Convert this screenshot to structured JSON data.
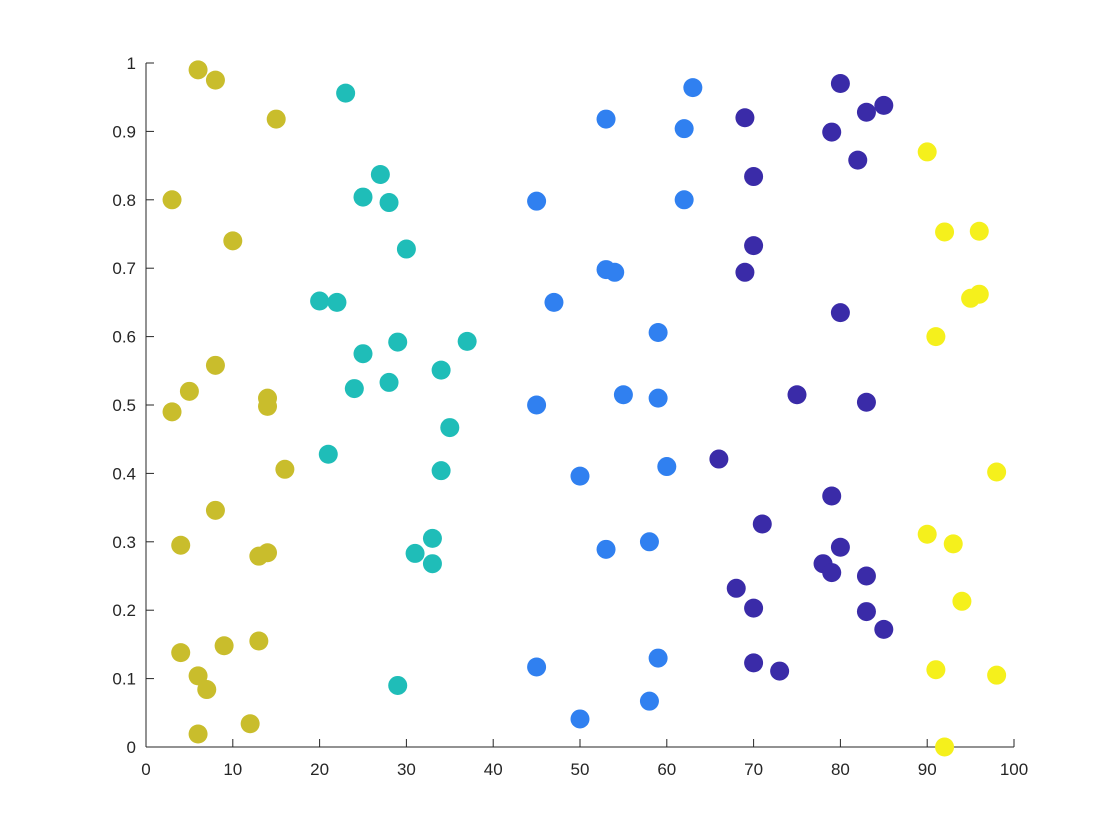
{
  "chart_data": {
    "type": "scatter",
    "title": "",
    "xlabel": "",
    "ylabel": "",
    "xlim": [
      0,
      100
    ],
    "ylim": [
      0,
      1
    ],
    "xticks": [
      "0",
      "10",
      "20",
      "30",
      "40",
      "50",
      "60",
      "70",
      "80",
      "90",
      "100"
    ],
    "yticks": [
      "0",
      "0.1",
      "0.2",
      "0.3",
      "0.4",
      "0.5",
      "0.6",
      "0.7",
      "0.8",
      "0.9",
      "1"
    ],
    "grid": false,
    "legend": "none",
    "series": [
      {
        "color": "#c9bd2c",
        "points": [
          [
            6,
            0.99
          ],
          [
            8,
            0.975
          ],
          [
            15,
            0.918
          ],
          [
            3,
            0.8
          ],
          [
            10,
            0.74
          ],
          [
            8,
            0.558
          ],
          [
            5,
            0.52
          ],
          [
            3,
            0.49
          ],
          [
            14,
            0.51
          ],
          [
            14,
            0.498
          ],
          [
            16,
            0.406
          ],
          [
            8,
            0.346
          ],
          [
            4,
            0.295
          ],
          [
            14,
            0.284
          ],
          [
            13,
            0.279
          ],
          [
            9,
            0.148
          ],
          [
            13,
            0.155
          ],
          [
            4,
            0.138
          ],
          [
            6,
            0.104
          ],
          [
            7,
            0.084
          ],
          [
            12,
            0.034
          ],
          [
            6,
            0.019
          ]
        ]
      },
      {
        "color": "#1fbdb8",
        "points": [
          [
            23,
            0.956
          ],
          [
            27,
            0.837
          ],
          [
            25,
            0.804
          ],
          [
            28,
            0.796
          ],
          [
            30,
            0.728
          ],
          [
            20,
            0.652
          ],
          [
            22,
            0.65
          ],
          [
            29,
            0.592
          ],
          [
            37,
            0.593
          ],
          [
            25,
            0.575
          ],
          [
            34,
            0.551
          ],
          [
            24,
            0.524
          ],
          [
            28,
            0.533
          ],
          [
            35,
            0.467
          ],
          [
            21,
            0.428
          ],
          [
            34,
            0.404
          ],
          [
            33,
            0.305
          ],
          [
            31,
            0.283
          ],
          [
            33,
            0.268
          ],
          [
            29,
            0.09
          ]
        ]
      },
      {
        "color": "#3080f0",
        "points": [
          [
            63,
            0.964
          ],
          [
            53,
            0.918
          ],
          [
            62,
            0.904
          ],
          [
            45,
            0.798
          ],
          [
            62,
            0.8
          ],
          [
            53,
            0.698
          ],
          [
            54,
            0.694
          ],
          [
            47,
            0.65
          ],
          [
            59,
            0.606
          ],
          [
            55,
            0.515
          ],
          [
            59,
            0.51
          ],
          [
            45,
            0.5
          ],
          [
            60,
            0.41
          ],
          [
            50,
            0.396
          ],
          [
            58,
            0.3
          ],
          [
            53,
            0.289
          ],
          [
            59,
            0.13
          ],
          [
            45,
            0.117
          ],
          [
            58,
            0.067
          ],
          [
            50,
            0.041
          ]
        ]
      },
      {
        "color": "#3a2ba8",
        "points": [
          [
            80,
            0.97
          ],
          [
            85,
            0.938
          ],
          [
            83,
            0.928
          ],
          [
            69,
            0.92
          ],
          [
            79,
            0.899
          ],
          [
            82,
            0.858
          ],
          [
            70,
            0.834
          ],
          [
            70,
            0.733
          ],
          [
            69,
            0.694
          ],
          [
            80,
            0.635
          ],
          [
            75,
            0.515
          ],
          [
            83,
            0.504
          ],
          [
            66,
            0.421
          ],
          [
            79,
            0.367
          ],
          [
            71,
            0.326
          ],
          [
            80,
            0.292
          ],
          [
            78,
            0.268
          ],
          [
            79,
            0.255
          ],
          [
            83,
            0.25
          ],
          [
            68,
            0.232
          ],
          [
            70,
            0.203
          ],
          [
            83,
            0.198
          ],
          [
            85,
            0.172
          ],
          [
            70,
            0.123
          ],
          [
            73,
            0.111
          ]
        ]
      },
      {
        "color": "#f5f01c",
        "points": [
          [
            90,
            0.87
          ],
          [
            92,
            0.753
          ],
          [
            96,
            0.754
          ],
          [
            96,
            0.662
          ],
          [
            95,
            0.656
          ],
          [
            91,
            0.6
          ],
          [
            98,
            0.402
          ],
          [
            90,
            0.311
          ],
          [
            93,
            0.297
          ],
          [
            94,
            0.213
          ],
          [
            91,
            0.113
          ],
          [
            98,
            0.105
          ],
          [
            92,
            0.0
          ]
        ]
      }
    ]
  }
}
